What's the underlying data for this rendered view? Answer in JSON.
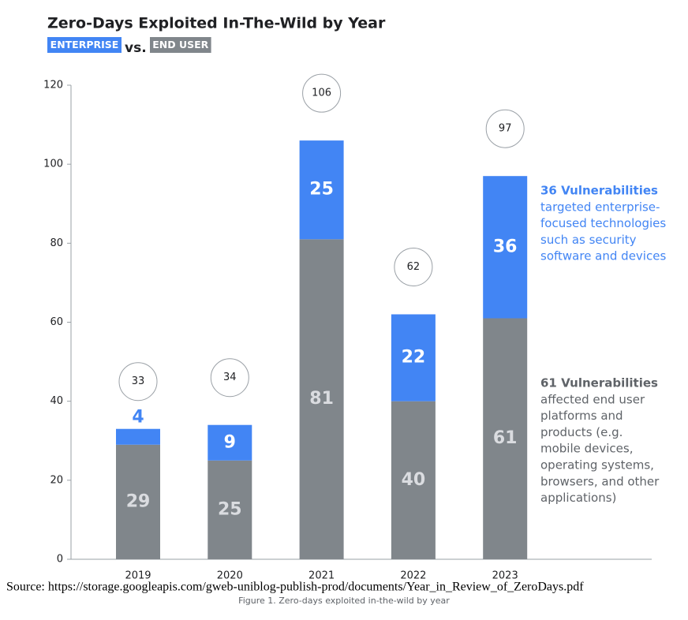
{
  "chart_data": {
    "type": "bar",
    "stacked": true,
    "title": "Zero-Days Exploited In-The-Wild by Year",
    "legend_joiner": "vs.",
    "categories": [
      "2019",
      "2020",
      "2021",
      "2022",
      "2023"
    ],
    "series": [
      {
        "name": "END USER",
        "color": "#80868b",
        "label_color": "#dadce0",
        "values": [
          29,
          25,
          81,
          40,
          61
        ]
      },
      {
        "name": "ENTERPRISE",
        "color": "#4285f4",
        "label_color": "#ffffff",
        "values": [
          4,
          9,
          25,
          22,
          36
        ]
      }
    ],
    "legend_order": [
      1,
      0
    ],
    "totals": [
      33,
      34,
      106,
      62,
      97
    ],
    "ylim": [
      0,
      120
    ],
    "yticks": [
      0,
      20,
      40,
      60,
      80,
      100,
      120
    ],
    "annotations": [
      {
        "title": "36 Vulnerabilities",
        "color": "#4285f4",
        "lines": [
          "targeted enterprise-",
          "focused technologies",
          "such as security",
          "software and devices"
        ]
      },
      {
        "title": "61 Vulnerabilities",
        "color": "#5f6368",
        "lines": [
          "affected end user",
          "platforms and",
          "products (e.g.",
          "mobile devices,",
          "operating systems,",
          "browsers, and other",
          "applications)"
        ]
      }
    ],
    "source": "Source: https://storage.googleapis.com/gweb-uniblog-publish-prod/documents/Year_in_Review_of_ZeroDays.pdf",
    "caption": "Figure 1. Zero-days exploited in-the-wild by year"
  }
}
